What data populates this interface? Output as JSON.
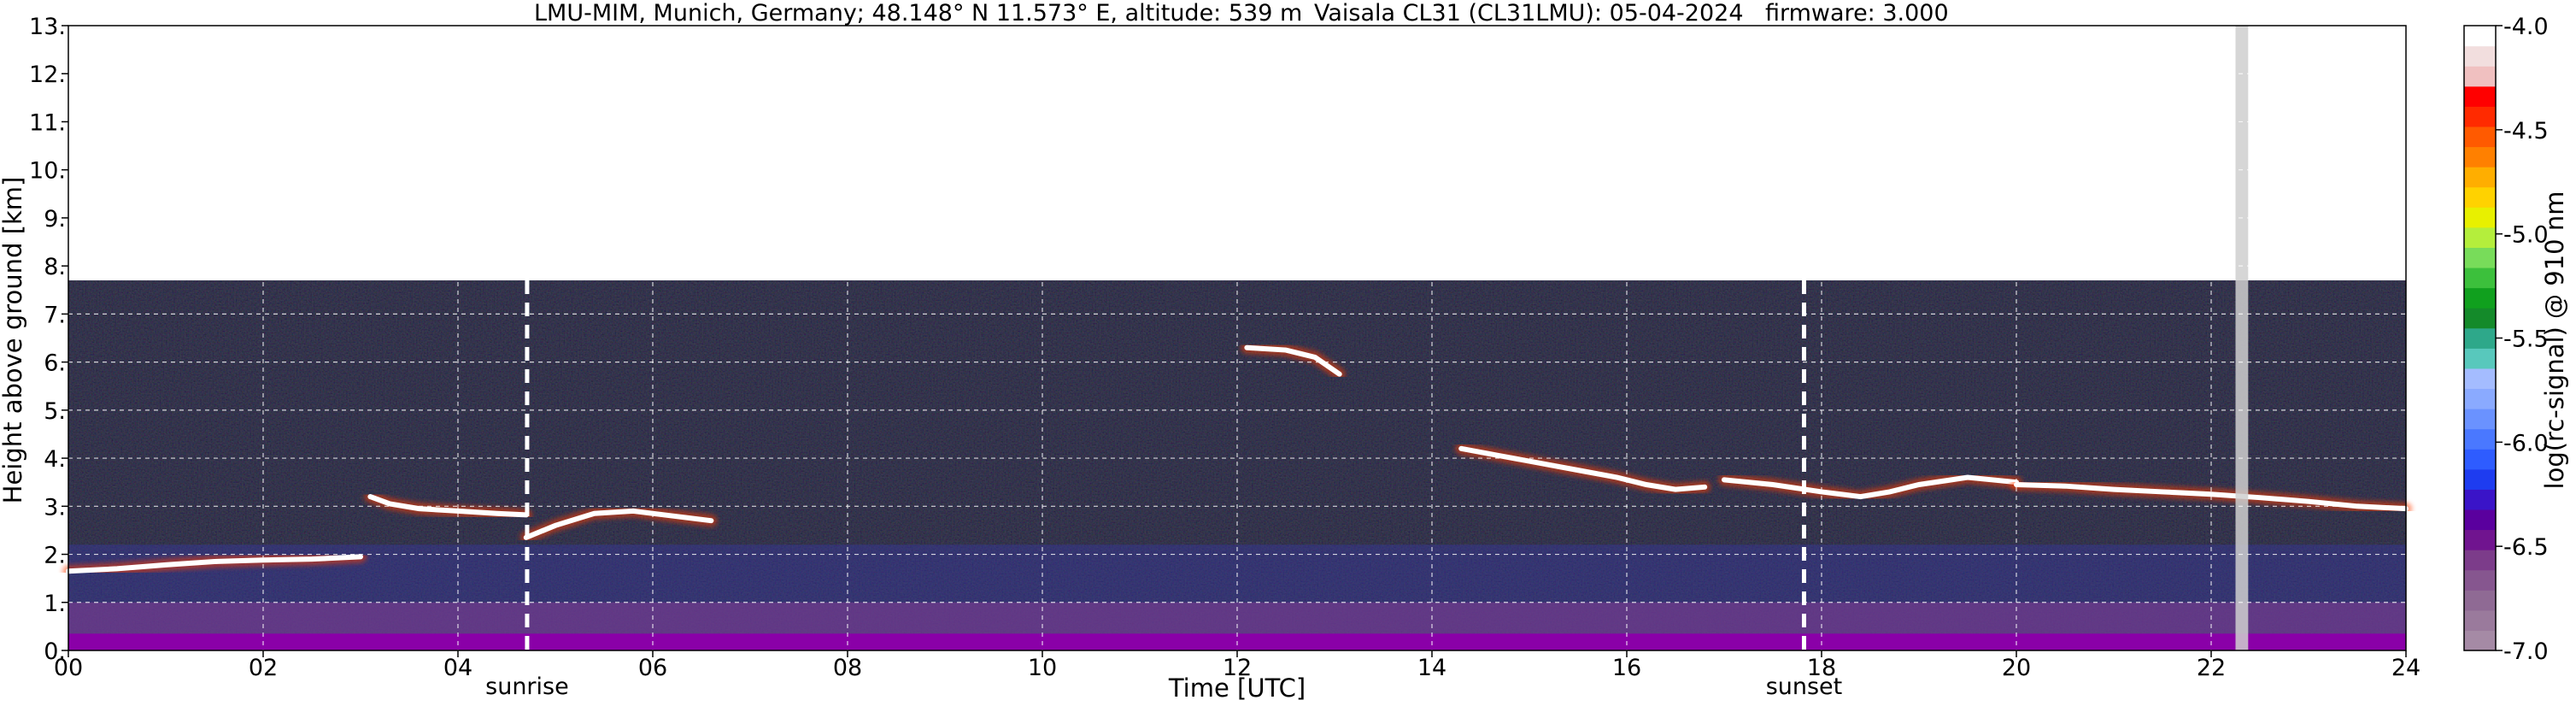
{
  "chart_data": {
    "type": "heatmap",
    "title_left": "LMU-MIM, Munich, Germany; 48.148° N 11.573° E, altitude: 539 m",
    "title_mid": "Vaisala CL31 (CL31LMU): 05-04-2024",
    "title_right": "firmware: 3.000",
    "xlabel": "Time [UTC]",
    "ylabel": "Height above ground [km]",
    "xlim": [
      0,
      24
    ],
    "ylim": [
      0,
      13
    ],
    "x_ticks": [
      0,
      2,
      4,
      6,
      8,
      10,
      12,
      14,
      16,
      18,
      20,
      22,
      24
    ],
    "x_tick_labels": [
      "00",
      "02",
      "04",
      "06",
      "08",
      "10",
      "12",
      "14",
      "16",
      "18",
      "20",
      "22",
      "24"
    ],
    "y_ticks": [
      0,
      1,
      2,
      3,
      4,
      5,
      6,
      7,
      8,
      9,
      10,
      11,
      12,
      13
    ],
    "y_tick_labels": [
      "0.",
      "1.",
      "2.",
      "3.",
      "4.",
      "5.",
      "6.",
      "7.",
      "8.",
      "9.",
      "10.",
      "11.",
      "12.",
      "13."
    ],
    "grid": true,
    "data_top_km": 7.7,
    "colorbar": {
      "label": "log(rc-signal) @ 910 nm",
      "range": [
        -7.0,
        -4.0
      ],
      "ticks": [
        -7.0,
        -6.5,
        -6.0,
        -5.5,
        -5.0,
        -4.5,
        -4.0
      ],
      "tick_labels": [
        "-7.0",
        "-6.5",
        "-6.0",
        "-5.5",
        "-5.0",
        "-4.5",
        "-4.0"
      ],
      "colors": [
        "#a58aa5",
        "#9a7a9c",
        "#8f6a94",
        "#86568f",
        "#7c3c8a",
        "#70148f",
        "#5a009e",
        "#3a14c8",
        "#1e3cf0",
        "#2e5cff",
        "#4a78ff",
        "#6a92ff",
        "#8aaaff",
        "#a4bcff",
        "#58c8bc",
        "#2ea88a",
        "#148a2a",
        "#10a01e",
        "#3cc03c",
        "#78dc5a",
        "#b4ee3c",
        "#e8f000",
        "#ffd200",
        "#ffae00",
        "#ff8000",
        "#ff5a00",
        "#ff2a00",
        "#ff0000",
        "#f0c0c0",
        "#f2dede",
        "#ffffff"
      ]
    },
    "reference_lines": [
      {
        "label": "sunrise",
        "x": 4.71
      },
      {
        "label": "sunset",
        "x": 17.82
      }
    ],
    "no_data_intervals": [
      [
        22.25,
        22.38
      ]
    ],
    "cloud_layers": [
      {
        "x": [
          0.0,
          0.5,
          1.0,
          1.5,
          2.0,
          2.5,
          3.0
        ],
        "y": [
          1.65,
          1.7,
          1.78,
          1.85,
          1.88,
          1.9,
          1.95
        ]
      },
      {
        "x": [
          3.1,
          3.3,
          3.6,
          4.0,
          4.4,
          4.7
        ],
        "y": [
          3.2,
          3.05,
          2.95,
          2.9,
          2.85,
          2.82
        ]
      },
      {
        "x": [
          4.7,
          5.0,
          5.4,
          5.8,
          6.2,
          6.6
        ],
        "y": [
          2.35,
          2.6,
          2.85,
          2.9,
          2.8,
          2.7
        ]
      },
      {
        "x": [
          12.1,
          12.5,
          12.8,
          13.05
        ],
        "y": [
          6.3,
          6.25,
          6.1,
          5.75
        ]
      },
      {
        "x": [
          14.3,
          14.7,
          15.1,
          15.5,
          15.9,
          16.2,
          16.5,
          16.8
        ],
        "y": [
          4.2,
          4.05,
          3.9,
          3.75,
          3.6,
          3.45,
          3.35,
          3.4
        ]
      },
      {
        "x": [
          17.0,
          17.5,
          18.0,
          18.4,
          18.7,
          19.0,
          19.5,
          20.0
        ],
        "y": [
          3.55,
          3.45,
          3.3,
          3.2,
          3.3,
          3.45,
          3.6,
          3.5
        ]
      },
      {
        "x": [
          20.0,
          20.5,
          21.0,
          21.5,
          22.0,
          22.5,
          23.0,
          23.5,
          24.0
        ],
        "y": [
          3.45,
          3.42,
          3.35,
          3.3,
          3.25,
          3.18,
          3.1,
          3.0,
          2.95
        ]
      }
    ]
  }
}
